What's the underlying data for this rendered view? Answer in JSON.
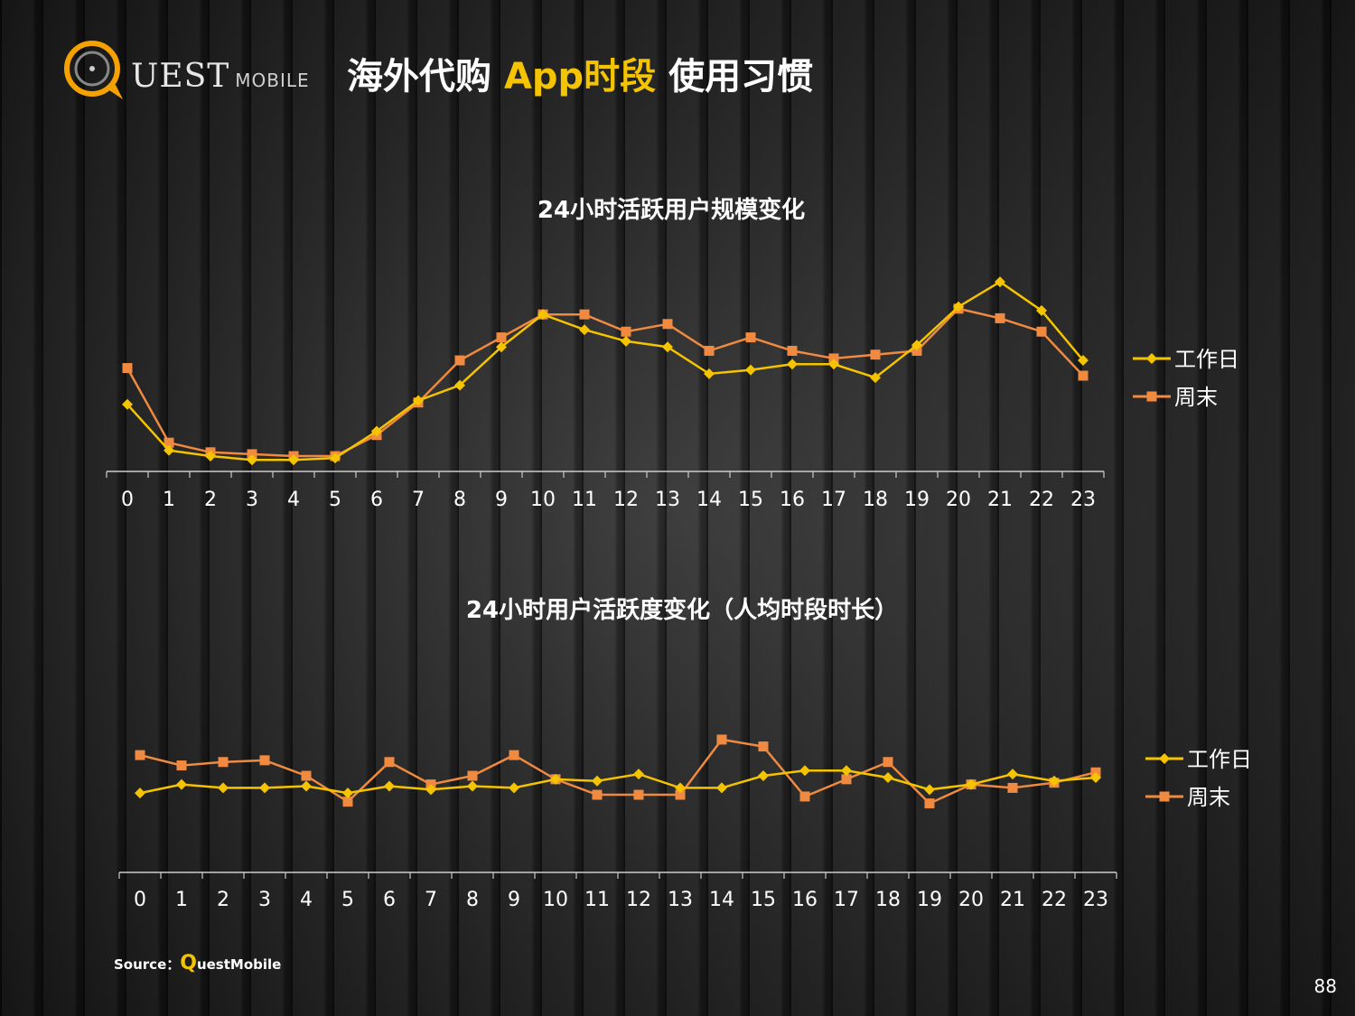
{
  "header": {
    "logo_main": "UEST",
    "logo_sub": "MOBILE",
    "title_part1": "海外代购",
    "title_highlight": "App时段",
    "title_part2": "使用习惯"
  },
  "colors": {
    "workday": "#f5c400",
    "weekend": "#f08a40",
    "axis": "#cccccc"
  },
  "chart_data": [
    {
      "type": "line",
      "title": "24小时活跃用户规模变化",
      "categories": [
        "0",
        "1",
        "2",
        "3",
        "4",
        "5",
        "6",
        "7",
        "8",
        "9",
        "10",
        "11",
        "12",
        "13",
        "14",
        "15",
        "16",
        "17",
        "18",
        "19",
        "20",
        "21",
        "22",
        "23"
      ],
      "ylim": [
        0,
        100
      ],
      "legend_position": "right",
      "grid": false,
      "series": [
        {
          "name": "工作日",
          "values": [
            35,
            11,
            8,
            6,
            6,
            7,
            21,
            37,
            45,
            65,
            82,
            74,
            68,
            65,
            51,
            53,
            56,
            56,
            49,
            66,
            86,
            99,
            84,
            58
          ]
        },
        {
          "name": "周末",
          "values": [
            54,
            15,
            10,
            9,
            8,
            8,
            19,
            36,
            58,
            70,
            82,
            82,
            73,
            77,
            63,
            70,
            63,
            59,
            61,
            63,
            85,
            80,
            73,
            50
          ]
        }
      ]
    },
    {
      "type": "line",
      "title": "24小时用户活跃度变化（人均时段时长）",
      "categories": [
        "0",
        "1",
        "2",
        "3",
        "4",
        "5",
        "6",
        "7",
        "8",
        "9",
        "10",
        "11",
        "12",
        "13",
        "14",
        "15",
        "16",
        "17",
        "18",
        "19",
        "20",
        "21",
        "22",
        "23"
      ],
      "ylim": [
        0,
        100
      ],
      "legend_position": "right",
      "grid": false,
      "series": [
        {
          "name": "工作日",
          "values": [
            46,
            51,
            49,
            49,
            50,
            46,
            50,
            48,
            50,
            49,
            54,
            53,
            57,
            49,
            49,
            56,
            59,
            59,
            55,
            48,
            51,
            57,
            53,
            55
          ]
        },
        {
          "name": "周末",
          "values": [
            68,
            62,
            64,
            65,
            56,
            41,
            64,
            51,
            56,
            68,
            54,
            45,
            45,
            45,
            77,
            73,
            44,
            54,
            64,
            40,
            51,
            49,
            52,
            58
          ]
        }
      ]
    }
  ],
  "footer": {
    "source_label": "Source：",
    "source_q": "Q",
    "source_rest": "uestMobile",
    "page_number": "88"
  }
}
